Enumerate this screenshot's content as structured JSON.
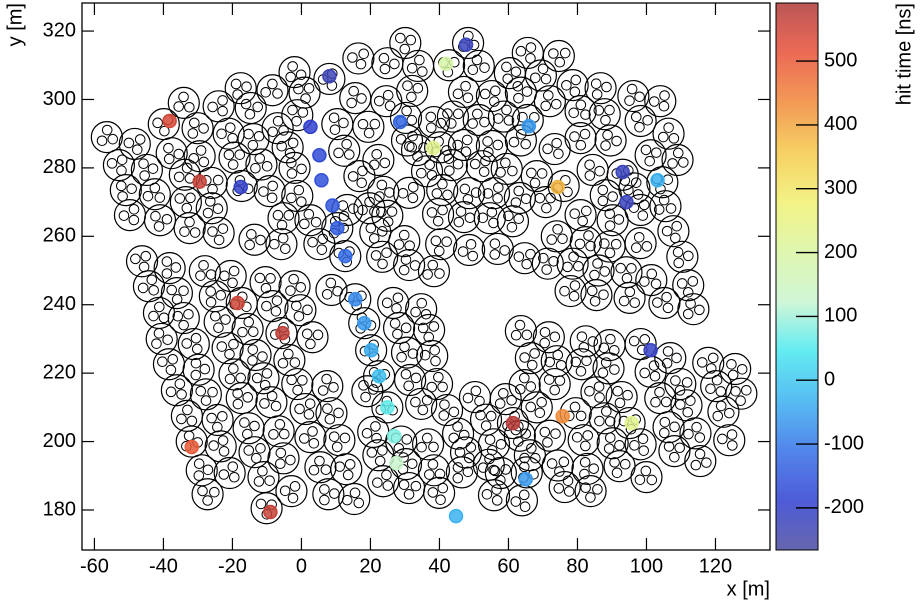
{
  "chart_data": {
    "type": "scatter",
    "x_label": "x [m]",
    "y_label": "y [m]",
    "colorbar_label": "hit time [ns]",
    "xlim": [
      -63.6,
      135.8
    ],
    "ylim": [
      168.3,
      328.2
    ],
    "xticks": [
      -60,
      -40,
      -20,
      0,
      20,
      40,
      60,
      80,
      100,
      120
    ],
    "yticks": [
      180,
      200,
      220,
      240,
      260,
      280,
      300,
      320
    ],
    "zlim": [
      -266,
      591
    ],
    "zticks": [
      -200,
      -100,
      0,
      100,
      200,
      300,
      400,
      500
    ],
    "colormap": [
      "#4b4ba0",
      "#2f3fd0",
      "#3470e8",
      "#3ab0f0",
      "#48e8f0",
      "#c8f5d0",
      "#d8f5a0",
      "#f0f070",
      "#f5c848",
      "#f08838",
      "#e85038",
      "#b03838"
    ],
    "stations": {
      "x": [
        30.1,
        48.3,
        16.5,
        24.9,
        33.8,
        42.8,
        51.4,
        65.6,
        60.4,
        69.4,
        74.6,
        -2,
        8.1,
        -17.6,
        -8.4,
        0.9,
        15.6,
        -24,
        -14.7,
        -34.1,
        -39.9,
        -30.1,
        -21.1,
        -13.9,
        -56.4,
        -48.3,
        -37.6,
        -29.5,
        -19.4,
        -11.6,
        -52.9,
        -44.8,
        -33.8,
        -26,
        -17.3,
        -9.2,
        -50.9,
        -42.5,
        -33.5,
        -26,
        -49.7,
        -41,
        -32.4,
        -24,
        -13.6,
        -5.8,
        -1.2,
        -6.9,
        -4,
        -2,
        -1.2,
        -5.2,
        2.6,
        5.2,
        10.4,
        12.4,
        19.4,
        22.3,
        16.8,
        13.3,
        19.7,
        24.9,
        23.7,
        31.2,
        21.4,
        29.8,
        23.4,
        31.2,
        24.6,
        32.1,
        30.3,
        30.6,
        38.4,
        47.1,
        43.9,
        51.4,
        55.2,
        63.6,
        58.7,
        65.6,
        72,
        78.6,
        86.7,
        80.9,
        87.9,
        96.2,
        104,
        98.3,
        106.4,
        80.9,
        89.6,
        73.4,
        101.2,
        109,
        93.1,
        84.4,
        76,
        68.2,
        59.5,
        52.3,
        43.6,
        36.4,
        33.5,
        40.2,
        47.1,
        55.2,
        63.6,
        70.8,
        63.3,
        55.8,
        48.6,
        40.8,
        39.6,
        47.1,
        54.6,
        61.3,
        74,
        80.9,
        88.2,
        96.5,
        104.6,
        105.5,
        98.3,
        90.2,
        82.4,
        89.3,
        98.3,
        107.8,
        110.4,
        101.4,
        94.2,
        86.1,
        78,
        85.5,
        95.1,
        112.1,
        113.6,
        105.2,
        71.4,
        78.6,
        64.7,
        56.9,
        48.6,
        40.5,
        38.4,
        -46.2,
        -38.2,
        -44.2,
        -36.1,
        -28,
        -20.5,
        -25.1,
        -17.3,
        -10.4,
        -2,
        -8.4,
        -0.3,
        -41.3,
        -34.1,
        -40.5,
        -31.2,
        -23.7,
        -15.6,
        -21.4,
        -13.3,
        -5.8,
        3.2,
        -3.5,
        -38.4,
        -29.8,
        -36.1,
        -27.7,
        -19.4,
        -11,
        -17.3,
        -8.7,
        -1.2,
        7.5,
        1.2,
        8.7,
        -33.2,
        -24.3,
        -31.8,
        -23.4,
        -15.3,
        -6.6,
        -13.6,
        -5.2,
        2.6,
        11,
        5.5,
        13,
        -28.9,
        -20.8,
        -27.2,
        -11,
        -2.9,
        7.8,
        15.3,
        -10.1,
        8.7,
        26.6,
        28.3,
        34.7,
        37,
        30.6,
        37.9,
        31.5,
        39.3,
        34.7,
        42.2,
        20.8,
        28.9,
        36.7,
        22.3,
        30.3,
        23.7,
        31.2,
        38.4,
        39.9,
        46.5,
        50.3,
        53.5,
        45.4,
        47.7,
        55.8,
        54.3,
        57.8,
        59.2,
        55.8,
        63.3,
        66.2,
        74.3,
        65.3,
        63.9,
        72,
        79.5,
        81.8,
        82.9,
        76.3,
        83.8,
        63.6,
        66.5,
        71.7,
        74,
        73.4,
        64.7,
        68.2,
        82.4,
        89.3,
        81.2,
        89,
        85.5,
        92.8,
        87.9,
        95.1,
        90.2,
        98.3,
        92.2,
        100,
        98.3,
        106.9,
        101.2,
        109.8,
        104,
        111.6,
        106.4,
        114.2,
        108.1,
        115.6,
        117.9,
        125.7,
        120.2,
        127.5,
        122.3,
        124,
        19.1,
        61.3,
        15.6,
        18.2,
        20.2,
        22.5,
        24.9,
        12.7,
        10.4
      ],
      "y": [
        316.5,
        316.5,
        312,
        310.6,
        309.8,
        310,
        309.8,
        313.6,
        307.7,
        307,
        312.7,
        308,
        306,
        303.3,
        302.7,
        302,
        300.4,
        298,
        297.5,
        299,
        292.8,
        291.6,
        290,
        288.4,
        289,
        287,
        284.3,
        283.4,
        283,
        281,
        280.8,
        279.4,
        278,
        275.6,
        274.7,
        273.2,
        273.5,
        272.3,
        270,
        268.2,
        266.2,
        264.7,
        262.4,
        261,
        259,
        257.7,
        295.4,
        291.6,
        286,
        280,
        271.8,
        265.3,
        264.7,
        257.7,
        292.8,
        285,
        292,
        282.3,
        277.6,
        267.7,
        268.2,
        266,
        273,
        272.7,
        261.2,
        258.6,
        254,
        251.6,
        299.5,
        302.5,
        294.6,
        288,
        293.4,
        302.2,
        295,
        294,
        301,
        302,
        295,
        294,
        299.5,
        304.2,
        303.3,
        296.6,
        295.7,
        301,
        299.5,
        293.7,
        290,
        288.7,
        288,
        285.5,
        283.7,
        282.3,
        278,
        279.4,
        274.7,
        277.6,
        279.7,
        280.5,
        280.8,
        279,
        285.2,
        286,
        286.7,
        286.4,
        288,
        270,
        271.2,
        272.6,
        272.6,
        273.5,
        266.5,
        265.6,
        265.3,
        264.4,
        260,
        266.2,
        272,
        274,
        275.8,
        268.8,
        267.7,
        264.7,
        258.3,
        257,
        258,
        261.5,
        254,
        247.2,
        249.5,
        250,
        244,
        242.8,
        242,
        245.7,
        238.7,
        240.5,
        252,
        252,
        253.6,
        256.3,
        256,
        257.7,
        249.8,
        252.7,
        250.7,
        245.4,
        243.4,
        249.8,
        248.4,
        242.5,
        240.5,
        246.6,
        245.4,
        239.6,
        238.4,
        237.6,
        236.1,
        230,
        228.5,
        235,
        232.9,
        227.3,
        225.3,
        231.7,
        230.5,
        223.8,
        222.6,
        221,
        215,
        213.8,
        219.6,
        218.5,
        212.7,
        211.5,
        216.8,
        216.2,
        209.5,
        208.3,
        207.5,
        206.3,
        200,
        198.6,
        203.9,
        203,
        196.9,
        195.1,
        201.3,
        200.4,
        192.5,
        191.9,
        191.6,
        190.8,
        184.6,
        189.6,
        185.5,
        184.6,
        183.2,
        180.5,
        244.3,
        240.5,
        233.2,
        238.7,
        232.6,
        226,
        225,
        218,
        216.8,
        211,
        209.2,
        202.8,
        200,
        199.2,
        196,
        193.4,
        188.4,
        186.4,
        191.6,
        185,
        191,
        213,
        206.4,
        202.3,
        196.8,
        199.2,
        193.2,
        190.8,
        212.4,
        184.3,
        201.7,
        196,
        193,
        191,
        182.8,
        201.7,
        208.3,
        200.4,
        192,
        186.7,
        185.5,
        232.3,
        224.4,
        230.5,
        223.5,
        216.8,
        216.5,
        210,
        229.3,
        228.2,
        222.6,
        221.4,
        214.4,
        213,
        206.8,
        205.4,
        199.5,
        199.2,
        192.8,
        189.6,
        228.5,
        224.4,
        220.4,
        216.8,
        212.7,
        210.6,
        204.2,
        202.4,
        197.2,
        194.3,
        223,
        221.2,
        216.2,
        214,
        208.7,
        200.4,
        214.7,
        205.4,
        241.6,
        234.6,
        226.7,
        219.1,
        210,
        254.2,
        262.4
      ]
    },
    "hits": {
      "x": [
        8.1,
        47.7,
        2.6,
        5.2,
        5.8,
        9,
        10.4,
        12.7,
        15.6,
        18.2,
        20.2,
        22.5,
        24.9,
        26.9,
        27.5,
        41.9,
        38.2,
        28.6,
        65.9,
        -38.2,
        -29.5,
        -17.6,
        93.1,
        94.2,
        103.2,
        74.3,
        -18.5,
        -5.5,
        101.2,
        95.7,
        75.7,
        61.3,
        -31.8,
        -9,
        65,
        44.8
      ],
      "y": [
        306.8,
        316,
        292,
        283.7,
        276.4,
        269,
        262.4,
        254.2,
        241.6,
        234.6,
        226.7,
        219.1,
        210,
        201.6,
        193.7,
        310.4,
        285.8,
        293.4,
        292.2,
        293.7,
        276,
        274.4,
        278.8,
        270,
        276.4,
        274.4,
        240.5,
        231.7,
        226.7,
        205.4,
        207.4,
        205.4,
        198.4,
        179.4,
        189,
        178.2
      ],
      "time": [
        -230,
        -220,
        -190,
        -170,
        -160,
        -150,
        -140,
        -120,
        -80,
        -60,
        -40,
        -10,
        60,
        80,
        130,
        190,
        230,
        -130,
        -60,
        540,
        560,
        -200,
        -220,
        -220,
        -30,
        380,
        550,
        570,
        -210,
        230,
        430,
        580,
        500,
        560,
        -60,
        -30
      ]
    }
  }
}
